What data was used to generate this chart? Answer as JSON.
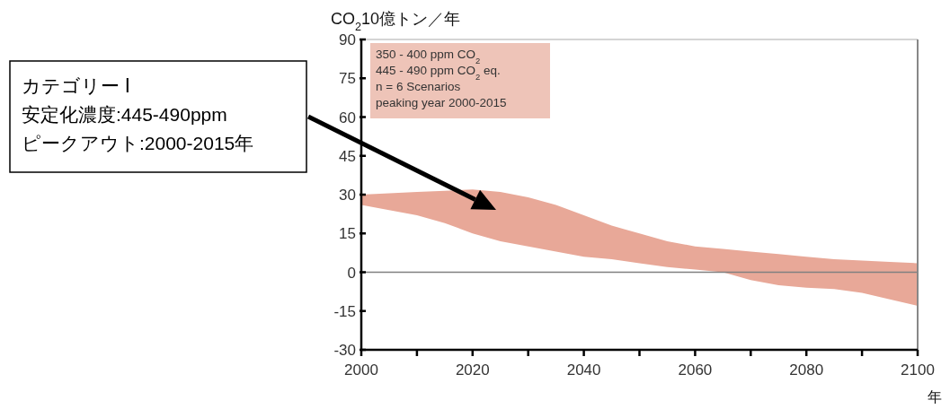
{
  "chart_data": {
    "type": "area",
    "ylabel": "CO$_{2}$10億トン／年",
    "xlabel": "年",
    "x": [
      2000,
      2005,
      2010,
      2015,
      2020,
      2025,
      2030,
      2035,
      2040,
      2045,
      2050,
      2055,
      2060,
      2065,
      2070,
      2075,
      2080,
      2085,
      2090,
      2095,
      2100
    ],
    "series": [
      {
        "color": "#e8a898",
        "values": [
          null,
          null,
          null,
          null,
          null,
          null,
          null,
          null,
          null,
          null,
          null,
          null,
          null,
          null,
          null,
          null,
          null,
          null,
          null,
          null,
          null
        ],
        "upper": [
          30,
          30.5,
          31,
          31.5,
          32,
          31,
          29,
          26,
          22,
          18,
          15,
          12,
          10,
          9,
          8,
          7,
          6,
          5,
          4.5,
          4,
          3.5
        ],
        "lower": [
          26,
          24,
          22,
          19,
          15,
          12,
          10,
          8,
          6,
          5,
          3.5,
          2,
          1,
          0,
          -3,
          -5,
          -6,
          -6.5,
          -8,
          -10.5,
          -13
        ]
      }
    ],
    "xlim": [
      2000,
      2100
    ],
    "xticks": [
      2000,
      {
        "value": 2010,
        "label": null
      },
      2020,
      {
        "value": 2030,
        "label": null
      },
      2040,
      {
        "value": 2050,
        "label": null
      },
      2060,
      {
        "value": 2070,
        "label": null
      },
      2080,
      {
        "value": 2090,
        "label": null
      },
      2100
    ],
    "ylim": [
      -30,
      90
    ],
    "yticks": [
      -30,
      -15,
      0,
      15,
      30,
      45,
      60,
      75,
      90
    ],
    "ref_lines": [
      {
        "axis": "y",
        "value": 0,
        "color": "#808080"
      }
    ],
    "annotations": [
      "350 - 400 ppm CO$_{2}$\n445 - 490 ppm CO$_{2}$ eq.\nn = 6 Scenarios\npeaking year 2000-2015",
      "カテゴリー Ⅰ\n安定化濃度:445-490ppm\nピークアウト:2000-2015年"
    ],
    "grid": false
  }
}
